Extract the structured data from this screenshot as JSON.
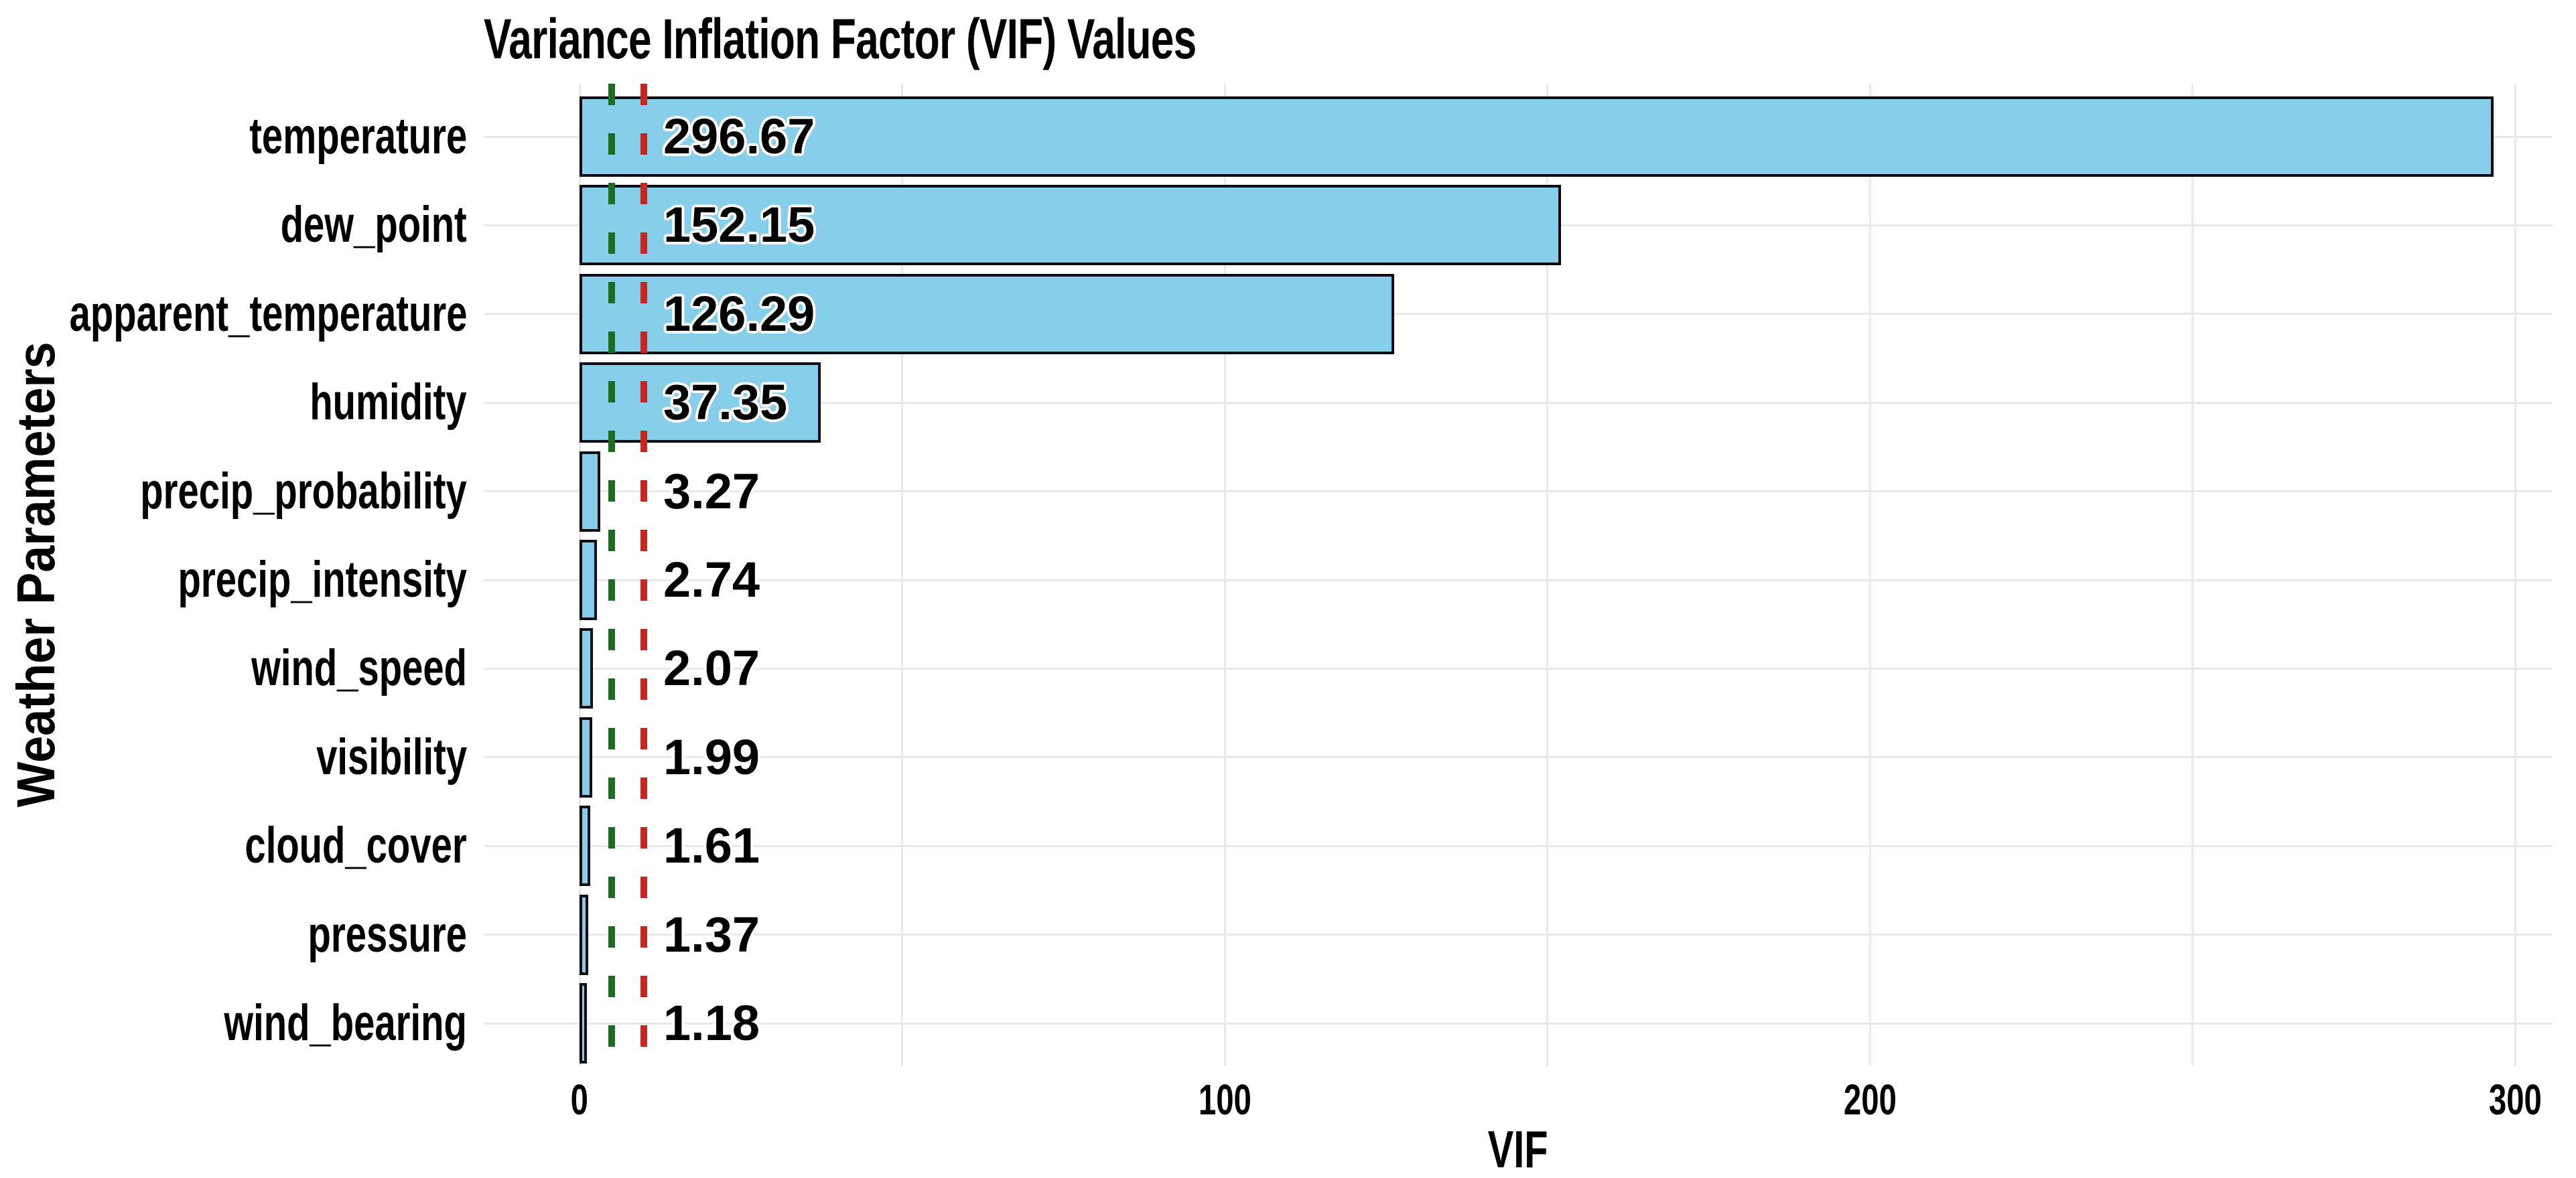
{
  "chart_data": {
    "type": "bar",
    "orientation": "horizontal",
    "title": "Variance Inflation Factor (VIF) Values",
    "xlabel": "VIF",
    "ylabel": "Weather Parameters",
    "categories": [
      "temperature",
      "dew_point",
      "apparent_temperature",
      "humidity",
      "precip_probability",
      "precip_intensity",
      "wind_speed",
      "visibility",
      "cloud_cover",
      "pressure",
      "wind_bearing"
    ],
    "values": [
      296.67,
      152.15,
      126.29,
      37.35,
      3.27,
      2.74,
      2.07,
      1.99,
      1.61,
      1.37,
      1.18
    ],
    "value_labels": [
      "296.67",
      "152.15",
      "126.29",
      "37.35",
      "3.27",
      "2.74",
      "2.07",
      "1.99",
      "1.61",
      "1.37",
      "1.18"
    ],
    "x_ticks": [
      0,
      100,
      200,
      300
    ],
    "x_tick_labels": [
      "0",
      "100",
      "200",
      "300"
    ],
    "x_gridline_step": 50,
    "xlim": [
      0,
      306
    ],
    "grid": true,
    "legend": "none",
    "reference_lines": [
      {
        "name": "vif-threshold-5",
        "value": 5,
        "style": "dashed",
        "color": "#1E6B22"
      },
      {
        "name": "vif-threshold-10",
        "value": 10,
        "style": "dashed",
        "color": "#C62821"
      }
    ],
    "colors": {
      "bar_fill": "#87CEEB",
      "bar_border": "#0B0B13",
      "gridline": "#E9E9E9",
      "text": "#000000",
      "background": "#FFFFFF"
    }
  }
}
